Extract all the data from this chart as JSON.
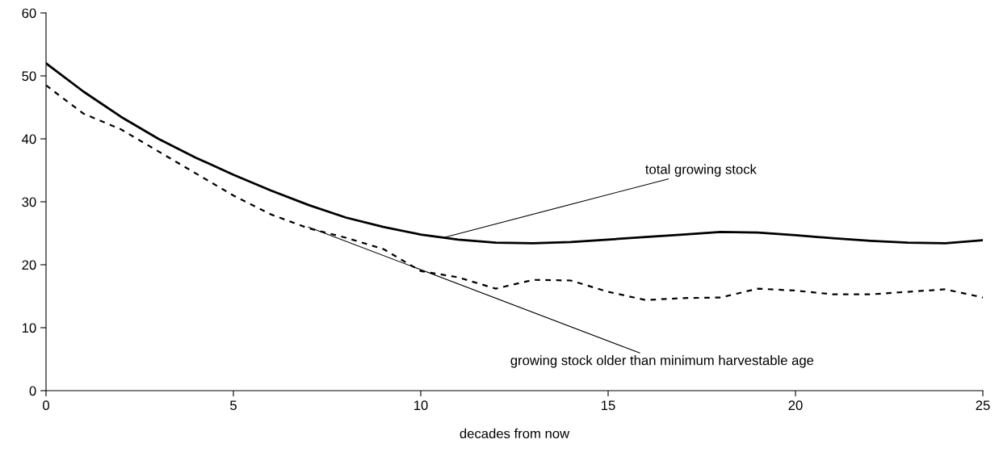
{
  "chart_data": {
    "type": "line",
    "xlabel": "decades from now",
    "x": [
      0,
      1,
      2,
      3,
      4,
      5,
      6,
      7,
      8,
      9,
      10,
      11,
      12,
      13,
      14,
      15,
      16,
      17,
      18,
      19,
      20,
      21,
      22,
      23,
      24,
      25
    ],
    "series": [
      {
        "color": "#000000",
        "line_style": "solid",
        "values": [
          52,
          47.5,
          43.5,
          40,
          37,
          34.3,
          31.8,
          29.5,
          27.5,
          26,
          24.8,
          24,
          23.5,
          23.4,
          23.6,
          24,
          24.4,
          24.8,
          25.2,
          25.1,
          24.7,
          24.2,
          23.8,
          23.5,
          23.4,
          23.9
        ]
      },
      {
        "color": "#000000",
        "line_style": "dashed",
        "values": [
          48.5,
          44,
          41.5,
          38,
          34.5,
          31,
          28,
          25.8,
          24.3,
          22.5,
          19,
          18,
          16.2,
          17.6,
          17.5,
          15.7,
          14.4,
          14.7,
          14.8,
          16.2,
          15.9,
          15.3,
          15.3,
          15.7,
          16.1,
          14.8
        ]
      }
    ],
    "annotations": [
      {
        "text": "total growing stock",
        "x": 10.6,
        "y": 24.3
      },
      {
        "text": "growing stock older than minimum harvestable age",
        "x": 7,
        "y": 26
      }
    ],
    "xlim": [
      0,
      25
    ],
    "xticks": [
      0,
      5,
      10,
      15,
      20,
      25
    ],
    "ylim": [
      0,
      60
    ],
    "yticks": [
      0,
      10,
      20,
      30,
      40,
      50,
      60
    ],
    "grid": false,
    "marker": "none"
  }
}
